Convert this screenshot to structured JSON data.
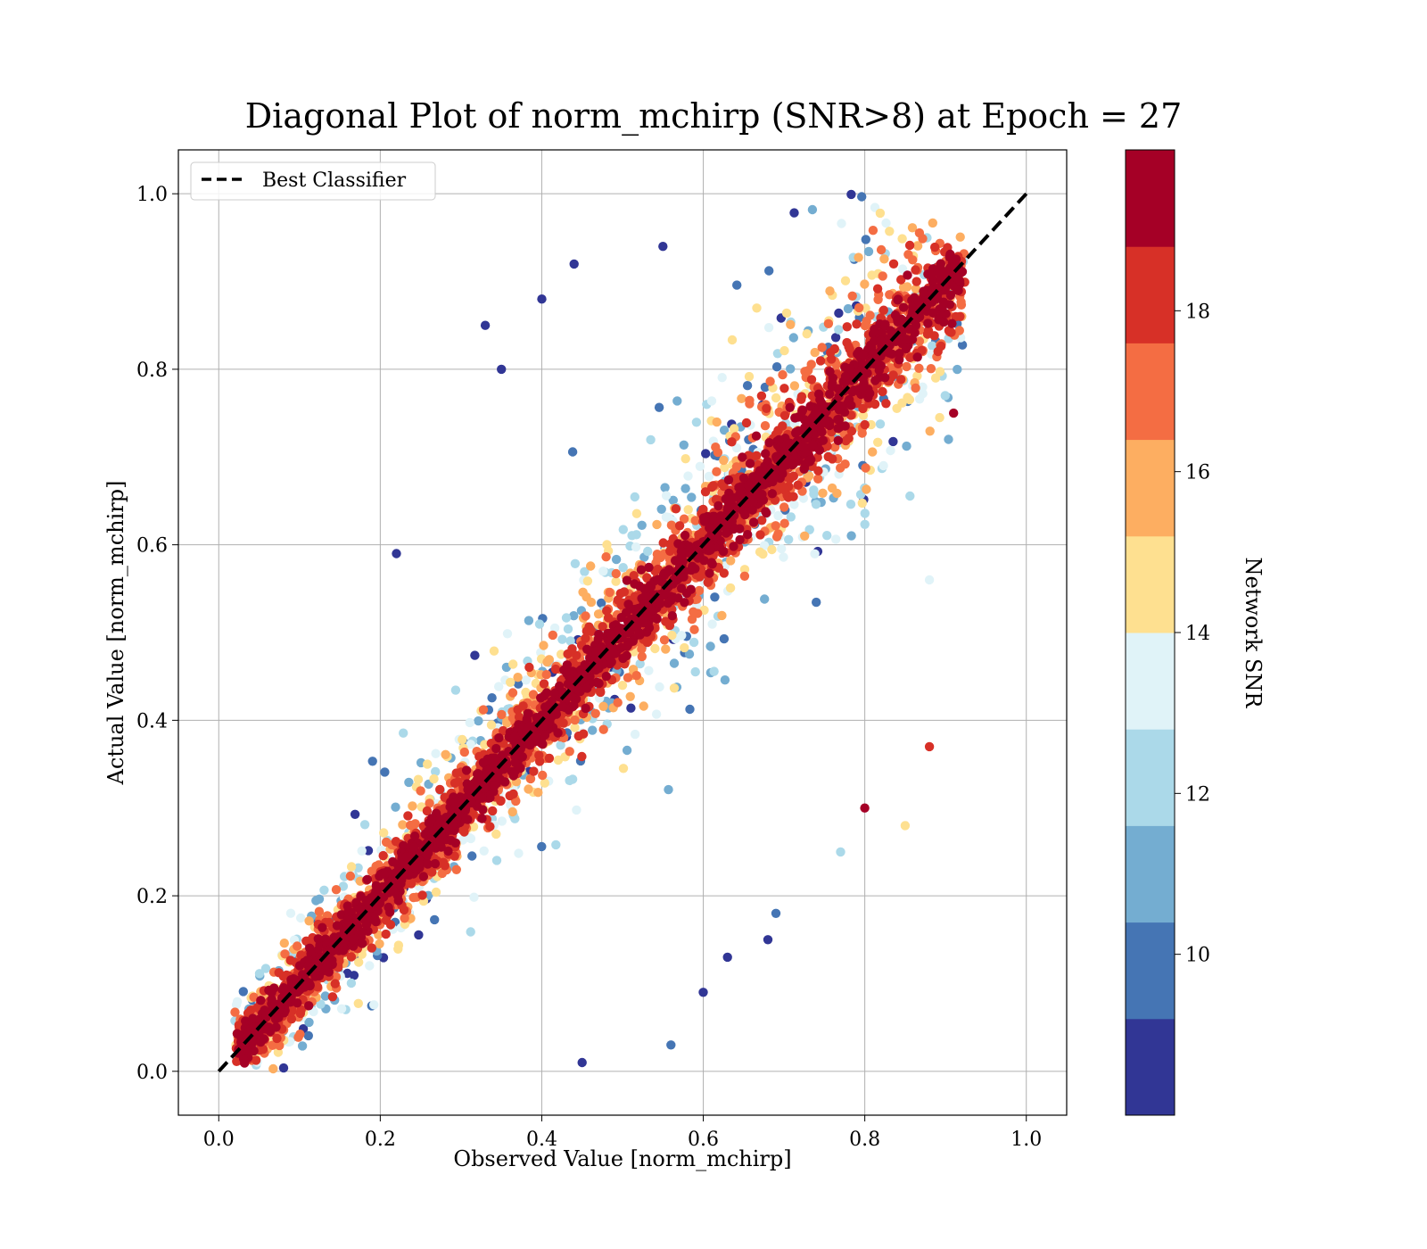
{
  "chart_data": {
    "type": "scatter",
    "title": "Diagonal Plot of norm_mchirp (SNR>8) at Epoch = 27",
    "xlabel": "Observed Value [norm_mchirp]",
    "ylabel": "Actual Value [norm_mchirp]",
    "xlim": [
      -0.05,
      1.05
    ],
    "ylim": [
      -0.05,
      1.05
    ],
    "x_ticks": [
      0.0,
      0.2,
      0.4,
      0.6,
      0.8,
      1.0
    ],
    "y_ticks": [
      0.0,
      0.2,
      0.4,
      0.6,
      0.8,
      1.0
    ],
    "x_tick_labels": [
      "0.0",
      "0.2",
      "0.4",
      "0.6",
      "0.8",
      "1.0"
    ],
    "y_tick_labels": [
      "0.0",
      "0.2",
      "0.4",
      "0.6",
      "0.8",
      "1.0"
    ],
    "grid": true,
    "legend": {
      "placement": "upper-left",
      "entries": [
        {
          "label": "Best Classifier",
          "style": "dashed",
          "color": "#000000"
        }
      ]
    },
    "reference_line": {
      "name": "Best Classifier",
      "x": [
        0.0,
        1.0
      ],
      "y": [
        0.0,
        1.0
      ]
    },
    "colorbar": {
      "label": "Network SNR",
      "range": [
        8,
        20
      ],
      "tick_values": [
        10,
        12,
        14,
        16,
        18
      ],
      "tick_labels": [
        "10",
        "12",
        "14",
        "16",
        "18"
      ],
      "colors": [
        "#313695",
        "#4575b4",
        "#74add1",
        "#abd9e9",
        "#e0f3f8",
        "#fee090",
        "#fdae61",
        "#f46d43",
        "#d73027",
        "#a50026"
      ]
    },
    "scatter_summary": {
      "x_range": [
        0.02,
        0.92
      ],
      "y_range": [
        0.0,
        1.0
      ],
      "note": "dense point cloud along diagonal; high-SNR points concentrated near y=x, low-SNR points spread wider"
    },
    "sample_points": [
      {
        "x": 0.4,
        "y": 0.88,
        "snr": 8.5
      },
      {
        "x": 0.33,
        "y": 0.85,
        "snr": 8.5
      },
      {
        "x": 0.35,
        "y": 0.8,
        "snr": 8.5
      },
      {
        "x": 0.22,
        "y": 0.59,
        "snr": 8.5
      },
      {
        "x": 0.44,
        "y": 0.92,
        "snr": 8.5
      },
      {
        "x": 0.55,
        "y": 0.94,
        "snr": 9.0
      },
      {
        "x": 0.85,
        "y": 0.28,
        "snr": 15.0
      },
      {
        "x": 0.77,
        "y": 0.25,
        "snr": 12.0
      },
      {
        "x": 0.68,
        "y": 0.15,
        "snr": 8.5
      },
      {
        "x": 0.6,
        "y": 0.09,
        "snr": 9.0
      },
      {
        "x": 0.56,
        "y": 0.03,
        "snr": 10.0
      },
      {
        "x": 0.45,
        "y": 0.01,
        "snr": 8.5
      },
      {
        "x": 0.63,
        "y": 0.13,
        "snr": 8.5
      },
      {
        "x": 0.69,
        "y": 0.18,
        "snr": 10.0
      },
      {
        "x": 0.8,
        "y": 0.3,
        "snr": 19.0
      },
      {
        "x": 0.88,
        "y": 0.37,
        "snr": 18.0
      },
      {
        "x": 0.91,
        "y": 0.75,
        "snr": 19.0
      },
      {
        "x": 0.88,
        "y": 0.56,
        "snr": 13.0
      }
    ]
  }
}
